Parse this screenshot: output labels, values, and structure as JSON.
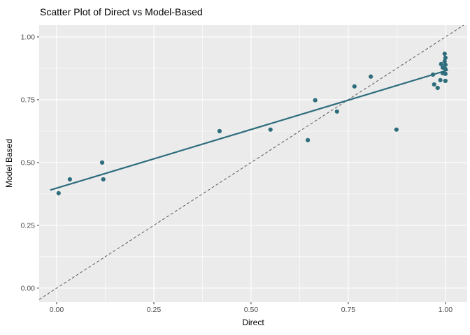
{
  "chart_data": {
    "type": "scatter",
    "title": "Scatter Plot of Direct vs Model-Based",
    "xlabel": "Direct",
    "ylabel": "Model Based",
    "xlim": [
      -0.045,
      1.056
    ],
    "ylim": [
      -0.056,
      1.047
    ],
    "grid": true,
    "legend_position": "none",
    "x_ticks": {
      "values": [
        0,
        0.25,
        0.5,
        0.75,
        1.0
      ],
      "labels": [
        "0.00",
        "0.25",
        "0.50",
        "0.75",
        "1.00"
      ]
    },
    "y_ticks": {
      "values": [
        0,
        0.25,
        0.5,
        0.75,
        1.0
      ],
      "labels": [
        "0.00",
        "0.25",
        "0.50",
        "0.75",
        "1.00"
      ]
    },
    "x_minor_ticks": [
      0.125,
      0.375,
      0.625,
      0.875
    ],
    "y_minor_ticks": [
      0.125,
      0.375,
      0.625,
      0.875
    ],
    "points": [
      [
        0.005,
        0.378
      ],
      [
        0.034,
        0.433
      ],
      [
        0.117,
        0.5
      ],
      [
        0.12,
        0.433
      ],
      [
        0.419,
        0.625
      ],
      [
        0.55,
        0.631
      ],
      [
        0.646,
        0.589
      ],
      [
        0.665,
        0.748
      ],
      [
        0.721,
        0.703
      ],
      [
        0.766,
        0.803
      ],
      [
        0.808,
        0.842
      ],
      [
        0.874,
        0.631
      ],
      [
        0.968,
        0.85
      ],
      [
        0.971,
        0.811
      ],
      [
        0.98,
        0.797
      ],
      [
        0.987,
        0.828
      ],
      [
        1.0,
        0.825
      ],
      [
        0.993,
        0.856
      ],
      [
        1.0,
        0.853
      ],
      [
        0.993,
        0.878
      ],
      [
        1.0,
        0.872
      ],
      [
        0.989,
        0.892
      ],
      [
        1.0,
        0.889
      ],
      [
        0.998,
        0.903
      ],
      [
        1.0,
        0.917
      ],
      [
        0.998,
        0.933
      ]
    ],
    "trend_line": {
      "intercept": 0.398,
      "slope": 0.467,
      "x_start": -0.015,
      "x_end": 1.005
    },
    "identity_line": {
      "start": [
        -0.045,
        -0.045
      ],
      "end": [
        1.047,
        1.047
      ],
      "style": "dashed"
    },
    "colors": {
      "point": "#2e6d7c",
      "trend": "#2e6d7c",
      "identity": "#5a5a5a",
      "panel_bg": "#ebebeb",
      "grid": "#ffffff",
      "tick": "#333333",
      "tick_text": "#4d4d4d"
    }
  }
}
